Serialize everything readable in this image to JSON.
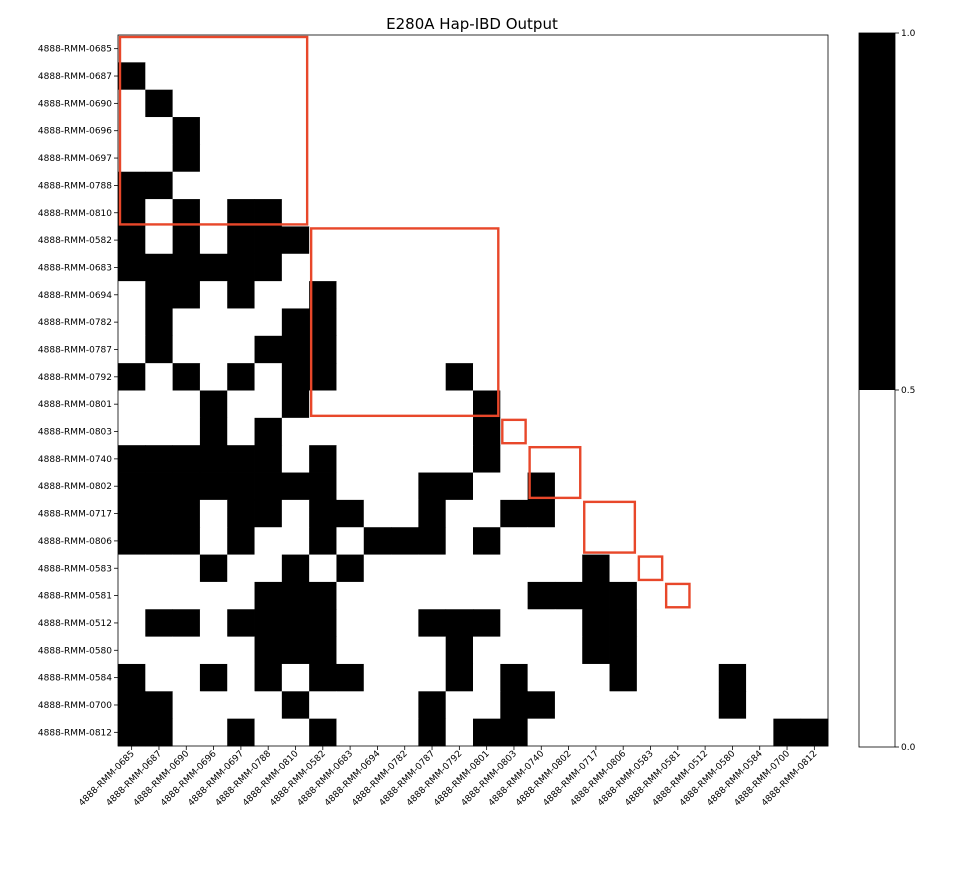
{
  "chart_data": {
    "type": "heatmap",
    "title": "E280A Hap-IBD Output",
    "xlabel": "",
    "ylabel": "",
    "labels": [
      "4888-RMM-0685",
      "4888-RMM-0687",
      "4888-RMM-0690",
      "4888-RMM-0696",
      "4888-RMM-0697",
      "4888-RMM-0788",
      "4888-RMM-0810",
      "4888-RMM-0582",
      "4888-RMM-0683",
      "4888-RMM-0694",
      "4888-RMM-0782",
      "4888-RMM-0787",
      "4888-RMM-0792",
      "4888-RMM-0801",
      "4888-RMM-0803",
      "4888-RMM-0740",
      "4888-RMM-0802",
      "4888-RMM-0717",
      "4888-RMM-0806",
      "4888-RMM-0583",
      "4888-RMM-0581",
      "4888-RMM-0512",
      "4888-RMM-0580",
      "4888-RMM-0584",
      "4888-RMM-0700",
      "4888-RMM-0812"
    ],
    "matrix": [
      [
        0,
        0,
        0,
        0,
        0,
        0,
        0,
        0,
        0,
        0,
        0,
        0,
        0,
        0,
        0,
        0,
        0,
        0,
        0,
        0,
        0,
        0,
        0,
        0,
        0,
        0
      ],
      [
        1,
        0,
        0,
        0,
        0,
        0,
        0,
        0,
        0,
        0,
        0,
        0,
        0,
        0,
        0,
        0,
        0,
        0,
        0,
        0,
        0,
        0,
        0,
        0,
        0,
        0
      ],
      [
        0,
        1,
        0,
        0,
        0,
        0,
        0,
        0,
        0,
        0,
        0,
        0,
        0,
        0,
        0,
        0,
        0,
        0,
        0,
        0,
        0,
        0,
        0,
        0,
        0,
        0
      ],
      [
        0,
        0,
        1,
        0,
        0,
        0,
        0,
        0,
        0,
        0,
        0,
        0,
        0,
        0,
        0,
        0,
        0,
        0,
        0,
        0,
        0,
        0,
        0,
        0,
        0,
        0
      ],
      [
        0,
        0,
        1,
        0,
        0,
        0,
        0,
        0,
        0,
        0,
        0,
        0,
        0,
        0,
        0,
        0,
        0,
        0,
        0,
        0,
        0,
        0,
        0,
        0,
        0,
        0
      ],
      [
        1,
        1,
        0,
        0,
        0,
        0,
        0,
        0,
        0,
        0,
        0,
        0,
        0,
        0,
        0,
        0,
        0,
        0,
        0,
        0,
        0,
        0,
        0,
        0,
        0,
        0
      ],
      [
        1,
        0,
        1,
        0,
        1,
        1,
        0,
        0,
        0,
        0,
        0,
        0,
        0,
        0,
        0,
        0,
        0,
        0,
        0,
        0,
        0,
        0,
        0,
        0,
        0,
        0
      ],
      [
        1,
        0,
        1,
        0,
        1,
        1,
        1,
        0,
        0,
        0,
        0,
        0,
        0,
        0,
        0,
        0,
        0,
        0,
        0,
        0,
        0,
        0,
        0,
        0,
        0,
        0
      ],
      [
        1,
        1,
        1,
        1,
        1,
        1,
        0,
        0,
        0,
        0,
        0,
        0,
        0,
        0,
        0,
        0,
        0,
        0,
        0,
        0,
        0,
        0,
        0,
        0,
        0,
        0
      ],
      [
        0,
        1,
        1,
        0,
        1,
        0,
        0,
        1,
        0,
        0,
        0,
        0,
        0,
        0,
        0,
        0,
        0,
        0,
        0,
        0,
        0,
        0,
        0,
        0,
        0,
        0
      ],
      [
        0,
        1,
        0,
        0,
        0,
        0,
        1,
        1,
        0,
        0,
        0,
        0,
        0,
        0,
        0,
        0,
        0,
        0,
        0,
        0,
        0,
        0,
        0,
        0,
        0,
        0
      ],
      [
        0,
        1,
        0,
        0,
        0,
        1,
        1,
        1,
        0,
        0,
        0,
        0,
        0,
        0,
        0,
        0,
        0,
        0,
        0,
        0,
        0,
        0,
        0,
        0,
        0,
        0
      ],
      [
        1,
        0,
        1,
        0,
        1,
        0,
        1,
        1,
        0,
        0,
        0,
        0,
        1,
        0,
        0,
        0,
        0,
        0,
        0,
        0,
        0,
        0,
        0,
        0,
        0,
        0
      ],
      [
        0,
        0,
        0,
        1,
        0,
        0,
        1,
        0,
        0,
        0,
        0,
        0,
        0,
        1,
        0,
        0,
        0,
        0,
        0,
        0,
        0,
        0,
        0,
        0,
        0,
        0
      ],
      [
        0,
        0,
        0,
        1,
        0,
        1,
        0,
        0,
        0,
        0,
        0,
        0,
        0,
        1,
        0,
        0,
        0,
        0,
        0,
        0,
        0,
        0,
        0,
        0,
        0,
        0
      ],
      [
        1,
        1,
        1,
        1,
        1,
        1,
        0,
        1,
        0,
        0,
        0,
        0,
        0,
        1,
        0,
        0,
        0,
        0,
        0,
        0,
        0,
        0,
        0,
        0,
        0,
        0
      ],
      [
        1,
        1,
        1,
        1,
        1,
        1,
        1,
        1,
        0,
        0,
        0,
        1,
        1,
        0,
        0,
        1,
        0,
        0,
        0,
        0,
        0,
        0,
        0,
        0,
        0,
        0
      ],
      [
        1,
        1,
        1,
        0,
        1,
        1,
        0,
        1,
        1,
        0,
        0,
        1,
        0,
        0,
        1,
        1,
        0,
        0,
        0,
        0,
        0,
        0,
        0,
        0,
        0,
        0
      ],
      [
        1,
        1,
        1,
        0,
        1,
        0,
        0,
        1,
        0,
        1,
        1,
        1,
        0,
        1,
        0,
        0,
        0,
        0,
        0,
        0,
        0,
        0,
        0,
        0,
        0,
        0
      ],
      [
        0,
        0,
        0,
        1,
        0,
        0,
        1,
        0,
        1,
        0,
        0,
        0,
        0,
        0,
        0,
        0,
        0,
        1,
        0,
        0,
        0,
        0,
        0,
        0,
        0,
        0
      ],
      [
        0,
        0,
        0,
        0,
        0,
        1,
        1,
        1,
        0,
        0,
        0,
        0,
        0,
        0,
        0,
        1,
        1,
        1,
        1,
        0,
        0,
        0,
        0,
        0,
        0,
        0
      ],
      [
        0,
        1,
        1,
        0,
        1,
        1,
        1,
        1,
        0,
        0,
        0,
        1,
        1,
        1,
        0,
        0,
        0,
        1,
        1,
        0,
        0,
        0,
        0,
        0,
        0,
        0
      ],
      [
        0,
        0,
        0,
        0,
        0,
        1,
        1,
        1,
        0,
        0,
        0,
        0,
        1,
        0,
        0,
        0,
        0,
        1,
        1,
        0,
        0,
        0,
        0,
        0,
        0,
        0
      ],
      [
        1,
        0,
        0,
        1,
        0,
        1,
        0,
        1,
        1,
        0,
        0,
        0,
        1,
        0,
        1,
        0,
        0,
        0,
        1,
        0,
        0,
        0,
        1,
        0,
        0,
        0
      ],
      [
        1,
        1,
        0,
        0,
        0,
        0,
        1,
        0,
        0,
        0,
        0,
        1,
        0,
        0,
        1,
        1,
        0,
        0,
        0,
        0,
        0,
        0,
        1,
        0,
        0,
        0
      ],
      [
        1,
        1,
        0,
        0,
        1,
        0,
        0,
        1,
        0,
        0,
        0,
        1,
        0,
        1,
        1,
        0,
        0,
        0,
        0,
        0,
        0,
        0,
        0,
        0,
        1,
        1
      ]
    ],
    "color_scale": {
      "low": "#ffffff",
      "high": "#000000",
      "threshold": 0.5
    },
    "colorbar_ticks": [
      "0.0",
      "0.5",
      "1.0"
    ],
    "highlight_color": "#e8472a",
    "highlight_blocks": [
      [
        0,
        7
      ],
      [
        7,
        14
      ],
      [
        14,
        15
      ],
      [
        15,
        17
      ],
      [
        17,
        19
      ],
      [
        19,
        20
      ],
      [
        20,
        21
      ]
    ]
  }
}
